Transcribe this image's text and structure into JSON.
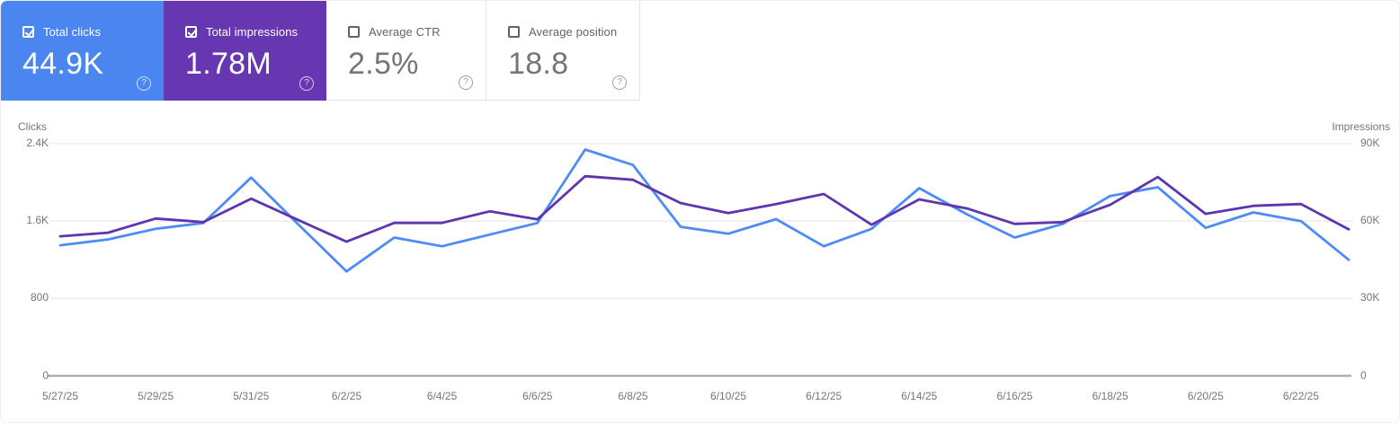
{
  "cards": [
    {
      "label": "Total clicks",
      "value": "44.9K",
      "checked": true,
      "bg": "#4b86f0"
    },
    {
      "label": "Total impressions",
      "value": "1.78M",
      "checked": true,
      "bg": "#6637b0"
    },
    {
      "label": "Average CTR",
      "value": "2.5%",
      "checked": false,
      "bg": "#ffffff"
    },
    {
      "label": "Average position",
      "value": "18.8",
      "checked": false,
      "bg": "#ffffff"
    }
  ],
  "icons": {
    "help_glyph": "?"
  },
  "colors": {
    "clicks_line": "#4e8bf5",
    "impressions_line": "#5e35b1",
    "gridline": "#ebebeb",
    "axis_line": "#9e9e9e",
    "tick_text": "#757575"
  },
  "chart_data": {
    "type": "line",
    "x": [
      "5/27/25",
      "5/28/25",
      "5/29/25",
      "5/30/25",
      "5/31/25",
      "6/1/25",
      "6/2/25",
      "6/3/25",
      "6/4/25",
      "6/5/25",
      "6/6/25",
      "6/7/25",
      "6/8/25",
      "6/9/25",
      "6/10/25",
      "6/11/25",
      "6/12/25",
      "6/13/25",
      "6/14/25",
      "6/15/25",
      "6/16/25",
      "6/17/25",
      "6/18/25",
      "6/19/25",
      "6/20/25",
      "6/21/25",
      "6/22/25",
      "6/23/25"
    ],
    "x_tick_labels": [
      "5/27/25",
      "5/29/25",
      "5/31/25",
      "6/2/25",
      "6/4/25",
      "6/6/25",
      "6/8/25",
      "6/10/25",
      "6/12/25",
      "6/14/25",
      "6/16/25",
      "6/18/25",
      "6/20/25",
      "6/22/25"
    ],
    "series": [
      {
        "name": "Clicks",
        "axis": "left",
        "values": [
          1350,
          1410,
          1520,
          1580,
          2050,
          1560,
          1080,
          1430,
          1340,
          1460,
          1580,
          2340,
          2180,
          1540,
          1470,
          1620,
          1340,
          1520,
          1940,
          1670,
          1430,
          1570,
          1860,
          1950,
          1530,
          1690,
          1600,
          1200
        ]
      },
      {
        "name": "Impressions",
        "axis": "right",
        "values": [
          54100,
          55500,
          61000,
          59600,
          68700,
          60300,
          52000,
          59300,
          59300,
          63800,
          60700,
          77400,
          76000,
          67000,
          63100,
          66600,
          70500,
          58600,
          68400,
          64900,
          58900,
          59600,
          66300,
          77100,
          62800,
          65900,
          66600,
          56800
        ]
      }
    ],
    "left_axis": {
      "title": "Clicks",
      "ticks": [
        "0",
        "800",
        "1.6K",
        "2.4K"
      ],
      "min": 0,
      "max": 2400
    },
    "right_axis": {
      "title": "Impressions",
      "ticks": [
        "0",
        "30K",
        "60K",
        "90K"
      ],
      "min": 0,
      "max": 90000
    },
    "grid": "horizontal",
    "legend": "none"
  }
}
